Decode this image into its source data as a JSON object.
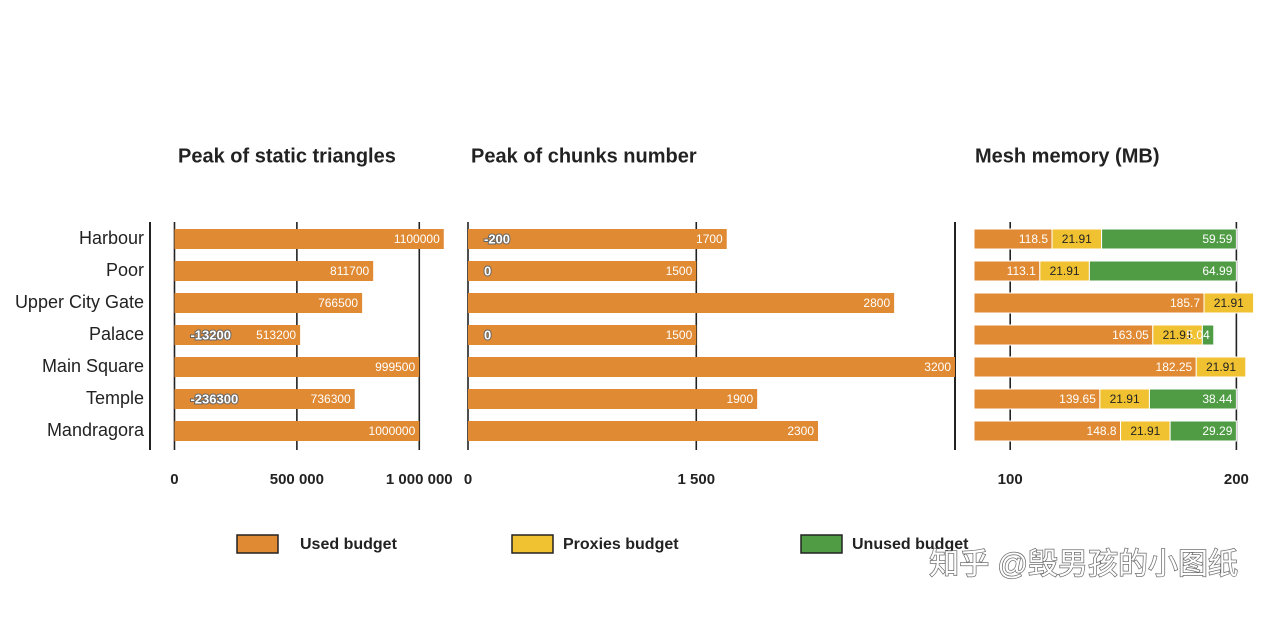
{
  "chart_data": [
    {
      "type": "bar",
      "title": "Peak of static triangles",
      "categories": [
        "Harbour",
        "Poor",
        "Upper City Gate",
        "Palace",
        "Main Square",
        "Temple",
        "Mandragora"
      ],
      "values": [
        1100000,
        811700,
        766500,
        513200,
        999500,
        736300,
        1000000
      ],
      "badges": [
        null,
        null,
        null,
        -13200,
        null,
        -236300,
        null
      ],
      "color": "#e08a33",
      "xlim": [
        -100000,
        1150000
      ],
      "xticks": [
        0,
        {
          "value": 500000,
          "label": "500 000"
        },
        {
          "value": 1000000,
          "label": "1 000 000"
        }
      ],
      "grid": true
    },
    {
      "type": "bar",
      "title": "Peak of chunks number",
      "values": [
        1700,
        1500,
        2800,
        1500,
        3200,
        1900,
        2300
      ],
      "badges": [
        -200,
        0,
        null,
        0,
        null,
        null,
        null
      ],
      "color": "#e08a33",
      "xlim": [
        0,
        3200
      ],
      "xticks": [
        0,
        {
          "value": 1500,
          "label": "1 500"
        }
      ],
      "grid": true
    },
    {
      "type": "stacked_bar",
      "title": "Mesh memory (MB)",
      "series": [
        {
          "name": "Used budget",
          "color": "#e08a33",
          "values": [
            118.5,
            113.1,
            185.7,
            163.05,
            182.25,
            139.65,
            148.8
          ]
        },
        {
          "name": "Proxies budget",
          "color": "#f0c232",
          "values": [
            21.91,
            21.91,
            21.91,
            21.91,
            21.91,
            21.91,
            21.91
          ]
        },
        {
          "name": "Unused budget",
          "color": "#4f9c45",
          "values": [
            59.59,
            64.99,
            null,
            5.04,
            null,
            38.44,
            29.29
          ]
        }
      ],
      "xlim": [
        84,
        210
      ],
      "xticks": [
        100,
        200
      ],
      "grid": true,
      "legend": "bottom",
      "watermark": "知乎 @毁男孩的小图纸"
    }
  ]
}
